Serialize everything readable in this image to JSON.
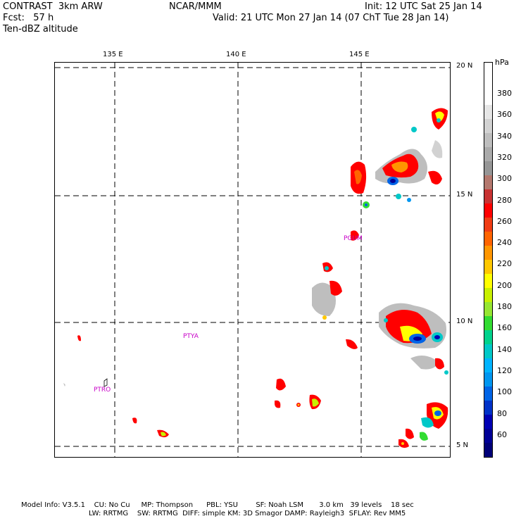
{
  "header": {
    "line1_left": "CONTRAST  3km ARW",
    "line1_mid": "NCAR/MMM",
    "line1_right": "Init: 12 UTC Sat 25 Jan 14",
    "line2_left": "Fcst:   57 h",
    "line2_right": "Valid: 21 UTC Mon 27 Jan 14 (07 ChT Tue 28 Jan 14)",
    "line3_left": "Ten-dBZ altitude"
  },
  "axes": {
    "lon_labels": [
      "135 E",
      "140 E",
      "145 E"
    ],
    "lat_labels": [
      "20 N",
      "15 N",
      "10 N",
      "5 N"
    ]
  },
  "stations": [
    "PGUM",
    "PTYA",
    "PTRO"
  ],
  "colorbar": {
    "unit": "hPa",
    "labels": [
      "380",
      "360",
      "340",
      "320",
      "300",
      "280",
      "260",
      "240",
      "220",
      "200",
      "180",
      "160",
      "140",
      "120",
      "100",
      "80",
      "60"
    ],
    "colors": [
      "#ffffff",
      "#ffffff",
      "#ffffff",
      "#e6e6e6",
      "#d2d2d2",
      "#bebebe",
      "#aaaaaa",
      "#969696",
      "#b4786e",
      "#c83232",
      "#ff0000",
      "#f03c14",
      "#ff6400",
      "#ff9600",
      "#ffc800",
      "#ffff00",
      "#c8f000",
      "#96e632",
      "#32dc32",
      "#00d28c",
      "#00c8c8",
      "#00b4ff",
      "#0096f0",
      "#0064e6",
      "#0032c8",
      "#0000b4",
      "#000096",
      "#000078"
    ]
  },
  "footer": {
    "line1": "Model Info: V3.5.1    CU: No Cu     MP: Thompson      PBL: YSU        SF: Noah LSM       3.0 km   39 levels    18 sec",
    "line2": "LW: RRTMG    SW: RRTMG  DIFF: simple KM: 3D Smagor DAMP: Rayleigh3  SFLAY: Rev MM5"
  }
}
